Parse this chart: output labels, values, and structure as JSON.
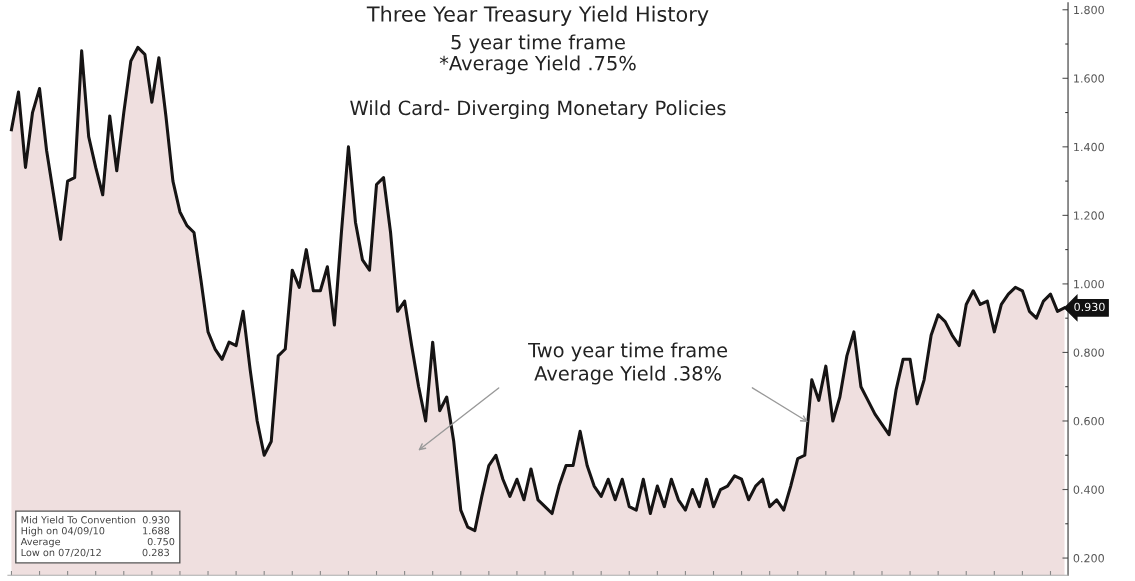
{
  "chart_data": {
    "type": "area",
    "title": "Three Year Treasury Yield History",
    "subtitle": "5 year time frame\n*Average Yield .75%",
    "categories": [
      null,
      null,
      null,
      null,
      null,
      null,
      null,
      null,
      null,
      null,
      null,
      null,
      null,
      null,
      null,
      null,
      null,
      null,
      null,
      null,
      null,
      null,
      null,
      null,
      null,
      null,
      null,
      null,
      null,
      null,
      null,
      null,
      null,
      null,
      null,
      null,
      null,
      null,
      null,
      null,
      null,
      null,
      null,
      null,
      null,
      null,
      null,
      null,
      null,
      null,
      null,
      null,
      null,
      null,
      null,
      null,
      null,
      null,
      null,
      null,
      null,
      null,
      null,
      null,
      null,
      null,
      null,
      null,
      null,
      null,
      null,
      null,
      null,
      null,
      null,
      null,
      null,
      null,
      null,
      null,
      null,
      null,
      null,
      null,
      null,
      null,
      null,
      null,
      null,
      null,
      null,
      null,
      null,
      null,
      null,
      null,
      null,
      null,
      null,
      null,
      null,
      null,
      null,
      null,
      null,
      null,
      null,
      null,
      null,
      null,
      null,
      null,
      null,
      null,
      null,
      null,
      null,
      null,
      null,
      null,
      null,
      null,
      null,
      null,
      null,
      null,
      null,
      null,
      null,
      null,
      null,
      null,
      null,
      null,
      null,
      null,
      null,
      null,
      null,
      null,
      null,
      null,
      null,
      null,
      null,
      null,
      null,
      null,
      null,
      null,
      null
    ],
    "series": [
      {
        "color": "#efdfdf",
        "values": [
          1.45,
          1.56,
          1.34,
          1.5,
          1.57,
          1.39,
          1.26,
          1.13,
          1.3,
          1.31,
          1.68,
          1.43,
          1.34,
          1.26,
          1.49,
          1.33,
          1.5,
          1.65,
          1.69,
          1.67,
          1.53,
          1.66,
          1.49,
          1.3,
          1.21,
          1.17,
          1.15,
          1.01,
          0.86,
          0.81,
          0.78,
          0.83,
          0.82,
          0.92,
          0.75,
          0.6,
          0.5,
          0.54,
          0.79,
          0.81,
          1.04,
          0.99,
          1.1,
          0.98,
          0.98,
          1.05,
          0.88,
          1.15,
          1.4,
          1.18,
          1.07,
          1.04,
          1.29,
          1.31,
          1.15,
          0.92,
          0.95,
          0.82,
          0.7,
          0.6,
          0.83,
          0.63,
          0.67,
          0.54,
          0.34,
          0.29,
          0.28,
          0.38,
          0.47,
          0.5,
          0.43,
          0.38,
          0.43,
          0.37,
          0.46,
          0.37,
          0.35,
          0.33,
          0.41,
          0.47,
          0.47,
          0.57,
          0.47,
          0.41,
          0.38,
          0.43,
          0.37,
          0.43,
          0.35,
          0.34,
          0.43,
          0.33,
          0.41,
          0.35,
          0.43,
          0.37,
          0.34,
          0.4,
          0.35,
          0.43,
          0.35,
          0.4,
          0.41,
          0.44,
          0.43,
          0.37,
          0.41,
          0.43,
          0.35,
          0.37,
          0.34,
          0.41,
          0.49,
          0.5,
          0.72,
          0.66,
          0.76,
          0.6,
          0.67,
          0.79,
          0.86,
          0.7,
          0.66,
          0.62,
          0.59,
          0.56,
          0.69,
          0.78,
          0.78,
          0.65,
          0.72,
          0.85,
          0.91,
          0.89,
          0.85,
          0.82,
          0.94,
          0.98,
          0.94,
          0.95,
          0.86,
          0.94,
          0.97,
          0.99,
          0.98,
          0.92,
          0.9,
          0.95,
          0.97,
          0.92,
          0.93
        ]
      }
    ],
    "ylim": [
      0.15,
      1.82
    ],
    "yticks": [
      {
        "value": 0.2,
        "label": "0.200"
      },
      {
        "value": 0.4,
        "label": "0.400"
      },
      {
        "value": 0.6,
        "label": "0.600"
      },
      {
        "value": 0.8,
        "label": "0.800"
      },
      {
        "value": 1.0,
        "label": "1.000"
      },
      {
        "value": 1.2,
        "label": "1.200"
      },
      {
        "value": 1.4,
        "label": "1.400"
      },
      {
        "value": 1.6,
        "label": "1.600"
      },
      {
        "value": 1.8,
        "label": "1.800"
      }
    ],
    "tick_labels": "y",
    "grid": false,
    "legend": false,
    "annotations": [
      "Wild Card- Diverging Monetary Policies",
      "Two year time frame\nAverage Yield .38%",
      "0.930",
      "Mid Yield To Convention  0.930\nHigh on 04/09/10            1.688\nAverage                            0.750\nLow on 07/20/12             0.283"
    ]
  }
}
